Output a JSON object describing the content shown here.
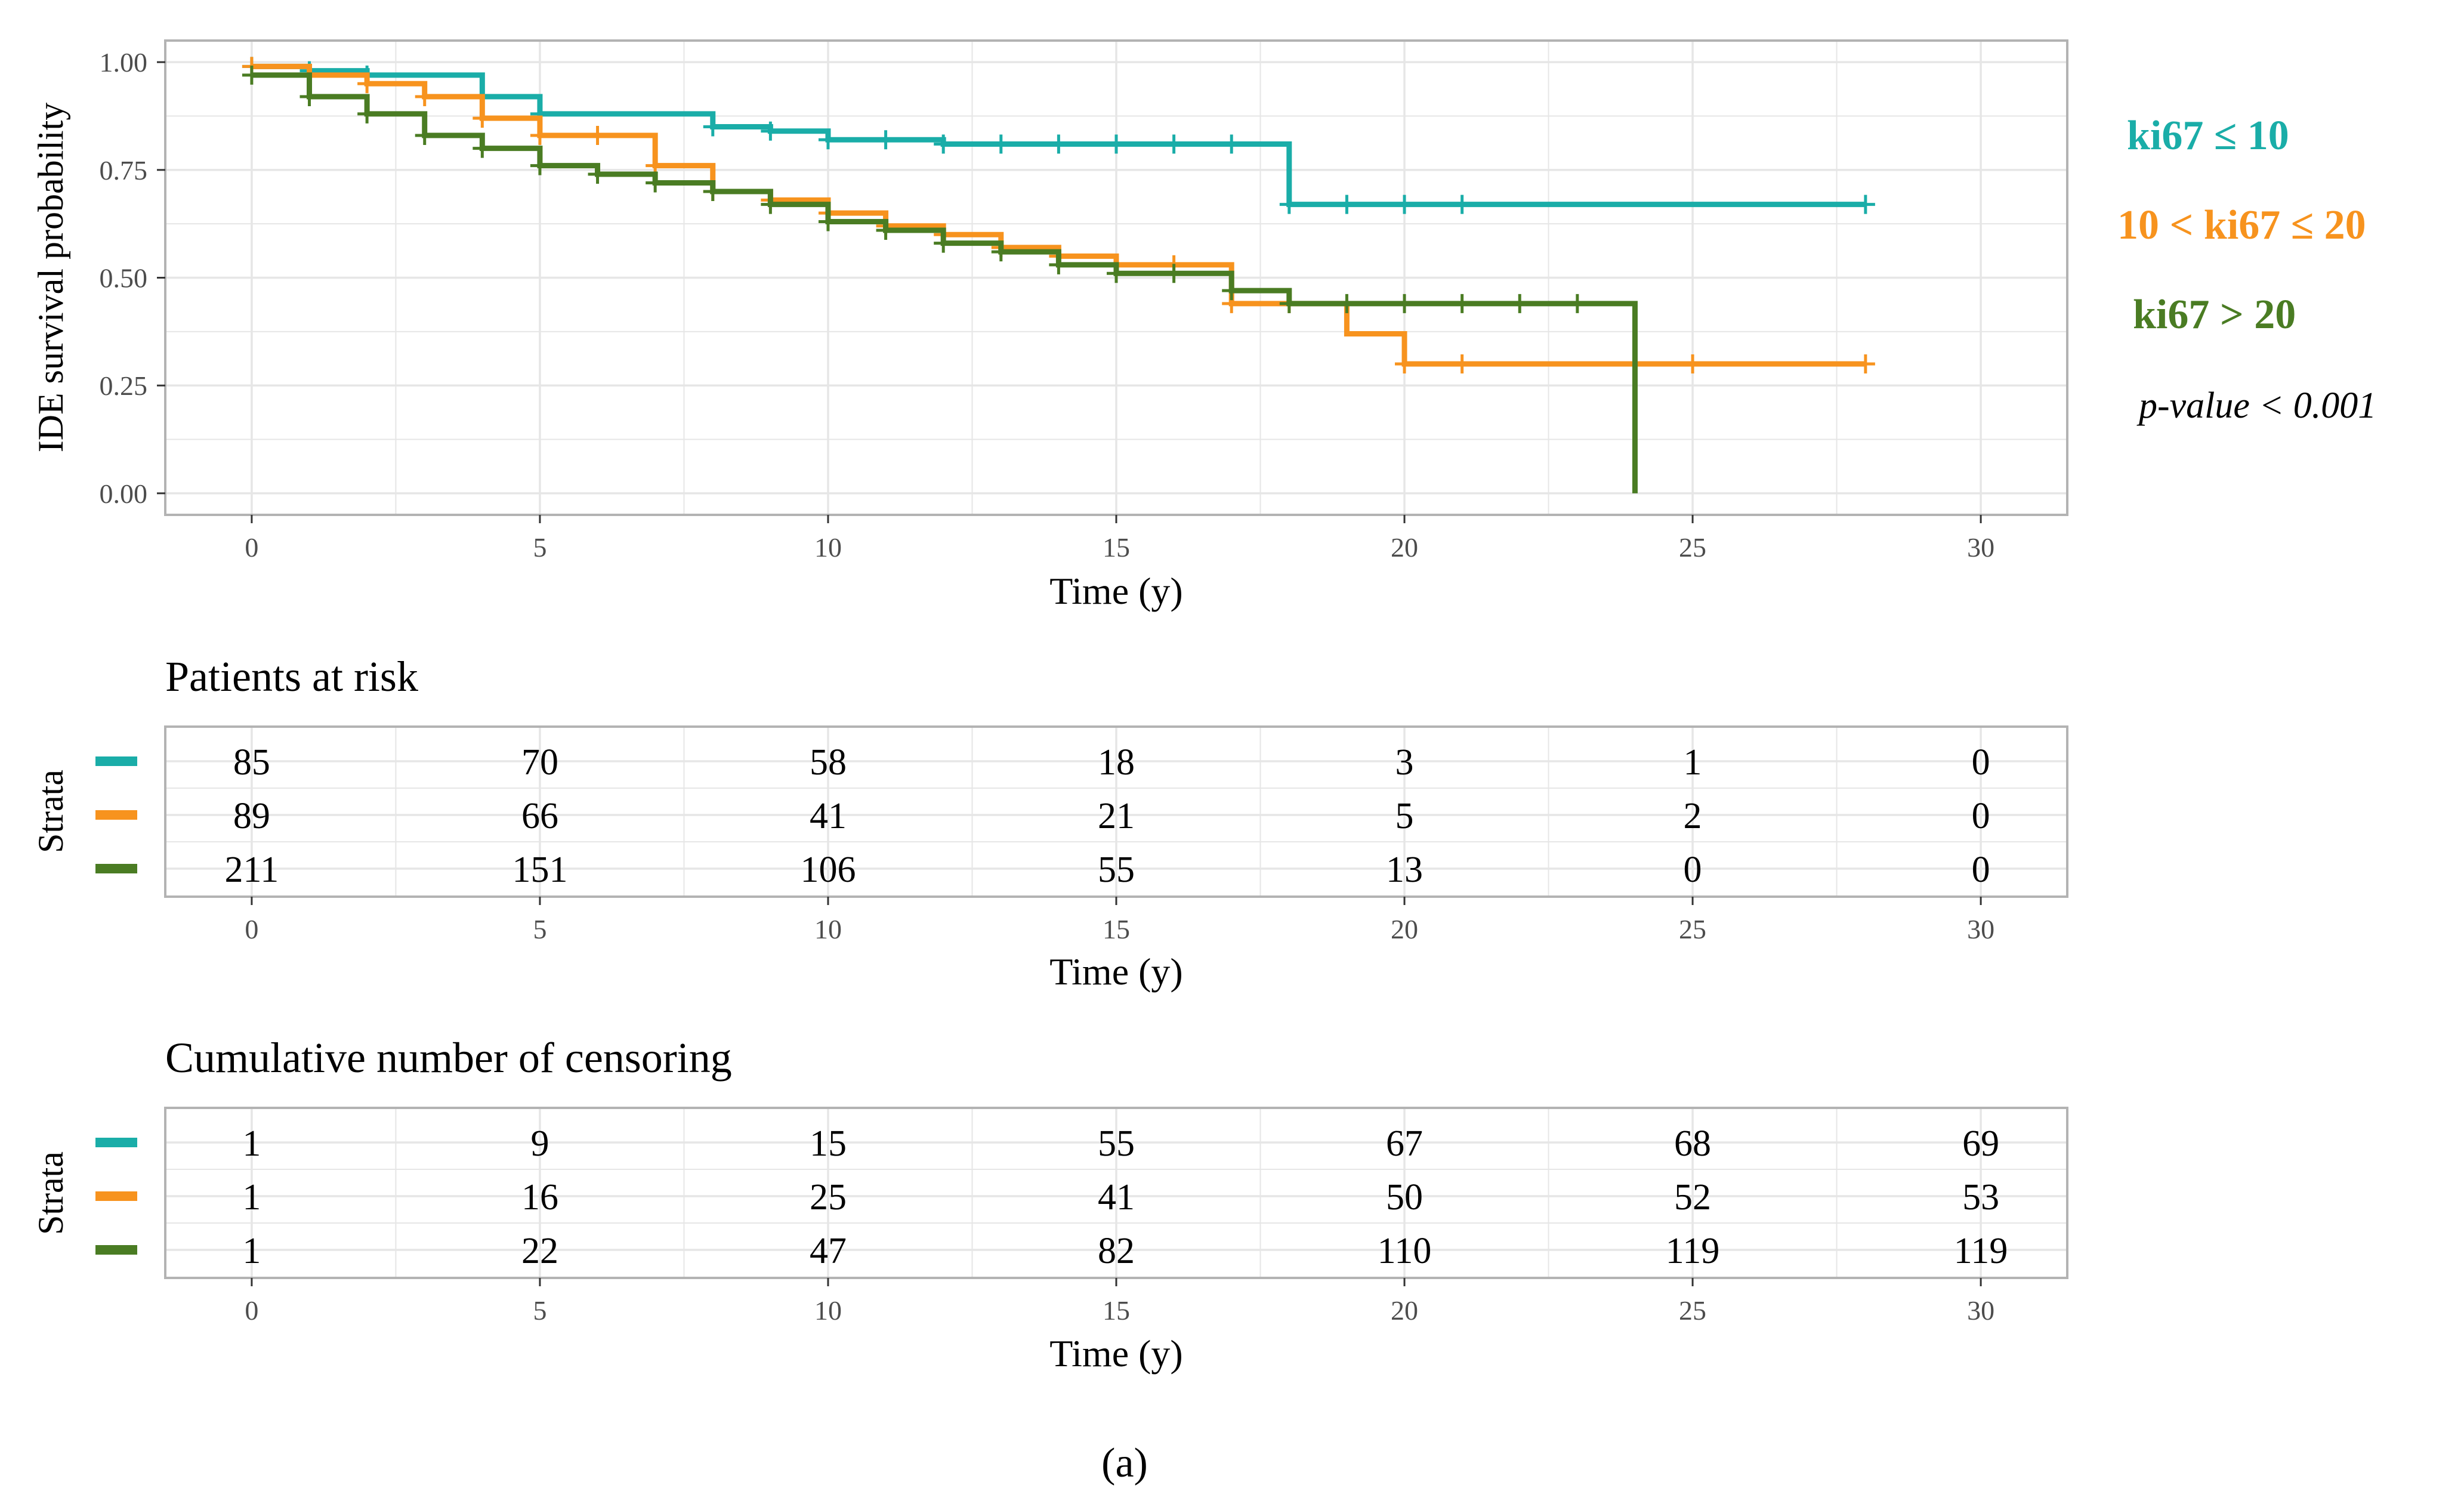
{
  "colors": {
    "teal": "#1AADA8",
    "orange": "#F7931E",
    "green": "#4A7C23",
    "grid": "#E6E6E6",
    "frame": "#B3B3B3",
    "tick_text": "#4D4D4D",
    "text": "#000000"
  },
  "chart_data": [
    {
      "type": "line",
      "subtype": "kaplan-meier step",
      "title": "",
      "xlabel": "Time (y)",
      "ylabel": "IDE survival probability",
      "xlim": [
        -1.5,
        31.5
      ],
      "ylim": [
        -0.05,
        1.05
      ],
      "x_ticks": [
        0,
        5,
        10,
        15,
        20,
        25,
        30
      ],
      "y_ticks": [
        0.0,
        0.25,
        0.5,
        0.75,
        1.0
      ],
      "y_tick_labels": [
        "0.00",
        "0.25",
        "0.50",
        "0.75",
        "1.00"
      ],
      "grid": true,
      "legend": [
        {
          "label": "ki67 ≤ 10",
          "color_key": "teal"
        },
        {
          "label": "10 < ki67 ≤ 20",
          "color_key": "orange"
        },
        {
          "label": "ki67 > 20",
          "color_key": "green"
        }
      ],
      "annotation": "p-value < 0.001",
      "series": [
        {
          "name": "ki67 ≤ 10",
          "color_key": "teal",
          "steps": [
            [
              0,
              0.99
            ],
            [
              1,
              0.98
            ],
            [
              2,
              0.97
            ],
            [
              4,
              0.92
            ],
            [
              5,
              0.88
            ],
            [
              8,
              0.85
            ],
            [
              9,
              0.84
            ],
            [
              10,
              0.82
            ],
            [
              12,
              0.81
            ],
            [
              18,
              0.67
            ],
            [
              28,
              0.67
            ]
          ],
          "censor_x": [
            0,
            1,
            2,
            4,
            5,
            8,
            9,
            10,
            11,
            12,
            13,
            14,
            15,
            16,
            17,
            18,
            19,
            20,
            21,
            28
          ]
        },
        {
          "name": "10 < ki67 ≤ 20",
          "color_key": "orange",
          "steps": [
            [
              0,
              0.99
            ],
            [
              1,
              0.97
            ],
            [
              2,
              0.95
            ],
            [
              3,
              0.92
            ],
            [
              4,
              0.87
            ],
            [
              5,
              0.83
            ],
            [
              7,
              0.76
            ],
            [
              8,
              0.7
            ],
            [
              9,
              0.68
            ],
            [
              10,
              0.65
            ],
            [
              11,
              0.62
            ],
            [
              12,
              0.6
            ],
            [
              13,
              0.57
            ],
            [
              14,
              0.55
            ],
            [
              15,
              0.53
            ],
            [
              17,
              0.44
            ],
            [
              18,
              0.44
            ],
            [
              19,
              0.37
            ],
            [
              20,
              0.3
            ],
            [
              28,
              0.3
            ]
          ],
          "censor_x": [
            0,
            2,
            3,
            4,
            5,
            6,
            7,
            8,
            9,
            10,
            11,
            12,
            13,
            14,
            15,
            16,
            17,
            18,
            20,
            21,
            25,
            28
          ]
        },
        {
          "name": "ki67 > 20",
          "color_key": "green",
          "steps": [
            [
              0,
              0.97
            ],
            [
              1,
              0.92
            ],
            [
              2,
              0.88
            ],
            [
              3,
              0.83
            ],
            [
              4,
              0.8
            ],
            [
              5,
              0.76
            ],
            [
              6,
              0.74
            ],
            [
              7,
              0.72
            ],
            [
              8,
              0.7
            ],
            [
              9,
              0.67
            ],
            [
              10,
              0.63
            ],
            [
              11,
              0.61
            ],
            [
              12,
              0.58
            ],
            [
              13,
              0.56
            ],
            [
              14,
              0.53
            ],
            [
              15,
              0.51
            ],
            [
              17,
              0.47
            ],
            [
              18,
              0.44
            ],
            [
              24,
              0.0
            ]
          ],
          "censor_x": [
            0,
            1,
            2,
            3,
            4,
            5,
            6,
            7,
            8,
            9,
            10,
            11,
            12,
            13,
            14,
            15,
            16,
            17,
            18,
            19,
            20,
            21,
            22,
            23
          ]
        }
      ]
    },
    {
      "type": "table",
      "title": "Patients at risk",
      "ylabel": "Strata",
      "xlabel": "Time (y)",
      "x": [
        0,
        5,
        10,
        15,
        20,
        25,
        30
      ],
      "rows": [
        {
          "color_key": "teal",
          "values": [
            "85",
            "70",
            "58",
            "18",
            "3",
            "1",
            "0"
          ]
        },
        {
          "color_key": "orange",
          "values": [
            "89",
            "66",
            "41",
            "21",
            "5",
            "2",
            "0"
          ]
        },
        {
          "color_key": "green",
          "values": [
            "211",
            "151",
            "106",
            "55",
            "13",
            "0",
            "0"
          ]
        }
      ]
    },
    {
      "type": "table",
      "title": "Cumulative number of censoring",
      "ylabel": "Strata",
      "xlabel": "Time (y)",
      "x": [
        0,
        5,
        10,
        15,
        20,
        25,
        30
      ],
      "rows": [
        {
          "color_key": "teal",
          "values": [
            "1",
            "9",
            "15",
            "55",
            "67",
            "68",
            "69"
          ]
        },
        {
          "color_key": "orange",
          "values": [
            "1",
            "16",
            "25",
            "41",
            "50",
            "52",
            "53"
          ]
        },
        {
          "color_key": "green",
          "values": [
            "1",
            "22",
            "47",
            "82",
            "110",
            "119",
            "119"
          ]
        }
      ]
    }
  ],
  "caption": "(a)"
}
